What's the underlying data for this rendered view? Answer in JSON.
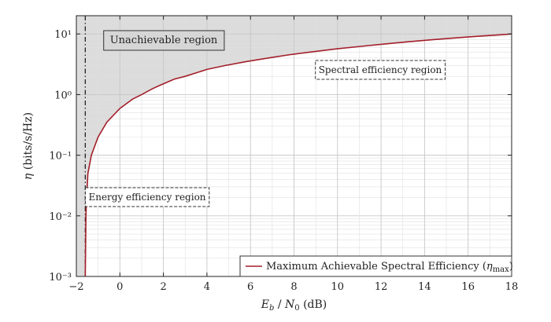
{
  "chart_data": {
    "type": "line",
    "title": "",
    "xlabel": "E_b / N_0 (dB)",
    "ylabel": "η (bits/s/Hz)",
    "xlim": [
      -2,
      18
    ],
    "ylim": [
      0.001,
      20
    ],
    "yscale": "log",
    "x_ticks": [
      -2,
      0,
      2,
      4,
      6,
      8,
      10,
      12,
      14,
      16,
      18
    ],
    "y_ticks": [
      0.001,
      0.01,
      0.1,
      1,
      10
    ],
    "y_tick_labels": [
      "10⁻³",
      "10⁻²",
      "10⁻¹",
      "10⁰",
      "10¹"
    ],
    "grid": true,
    "shannon_limit_db": -1.59,
    "series": [
      {
        "name": "Maximum Achievable Spectral Efficiency (η_max)",
        "color": "#a31f2a",
        "x": [
          -1.59,
          -1.56,
          -1.53,
          -1.47,
          -1.31,
          -1.0,
          -0.6,
          0.0,
          0.6,
          1.0,
          1.5,
          1.8,
          2.5,
          3.0,
          4.0,
          4.8,
          5.8,
          6.8,
          7.9,
          8.9,
          10.0,
          11.0,
          12.1,
          13.2,
          14.3,
          15.4,
          16.5,
          17.7,
          18.0
        ],
        "y": [
          0.001,
          0.01,
          0.02,
          0.05,
          0.1,
          0.2,
          0.35,
          0.59,
          0.85,
          1.0,
          1.25,
          1.4,
          1.8,
          2.0,
          2.6,
          3.0,
          3.5,
          4.0,
          4.6,
          5.1,
          5.7,
          6.2,
          6.8,
          7.4,
          8.0,
          8.6,
          9.2,
          9.8,
          10.0
        ]
      }
    ],
    "annotations": [
      {
        "text": "Unachievable region",
        "style": "solid-box"
      },
      {
        "text": "Spectral efficiency region",
        "style": "dashed-box"
      },
      {
        "text": "Energy efficiency region",
        "style": "dashed-box"
      }
    ],
    "legend": {
      "position": "bottom-right",
      "entry": "Maximum Achievable Spectral Efficiency (η",
      "entry_sub": "max",
      "entry_close": ")"
    }
  }
}
